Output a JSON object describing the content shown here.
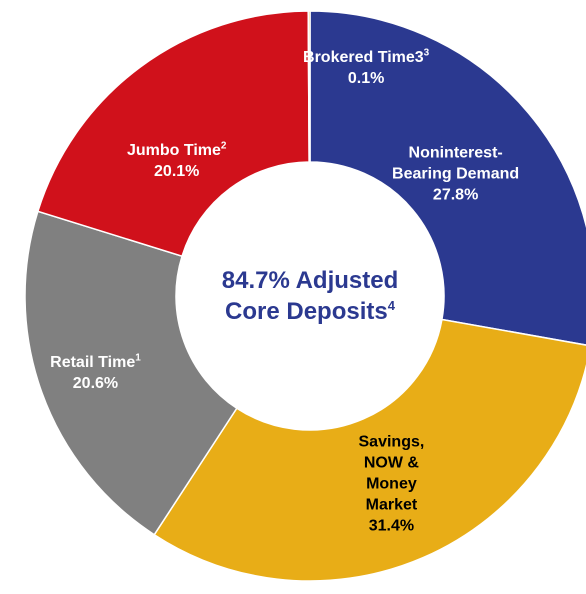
{
  "chart_data": {
    "type": "pie",
    "style": "donut",
    "center_label": {
      "line1": "84.7% Adjusted",
      "line2": "Core Deposits",
      "footnote": "4"
    },
    "slices": [
      {
        "name_lines": [
          "Noninterest-",
          "Bearing Demand"
        ],
        "footnote": "",
        "value": 27.8,
        "label": "27.8%",
        "color": "#2b3990",
        "text_color": "#ffffff"
      },
      {
        "name_lines": [
          "Savings,",
          "NOW &",
          "Money",
          "Market"
        ],
        "footnote": "",
        "value": 31.4,
        "label": "31.4%",
        "color": "#e8ad17",
        "text_color": "#000000"
      },
      {
        "name_lines": [
          "Retail Time"
        ],
        "footnote": "1",
        "value": 20.6,
        "label": "20.6%",
        "color": "#808080",
        "text_color": "#ffffff"
      },
      {
        "name_lines": [
          "Jumbo Time"
        ],
        "footnote": "2",
        "value": 20.1,
        "label": "20.1%",
        "color": "#d0111b",
        "text_color": "#ffffff"
      },
      {
        "name_lines": [
          "Brokered Time3"
        ],
        "footnote": "3",
        "value": 0.1,
        "label": "0.1%",
        "color": "#e8ad17",
        "text_color": "#ffffff"
      }
    ]
  }
}
